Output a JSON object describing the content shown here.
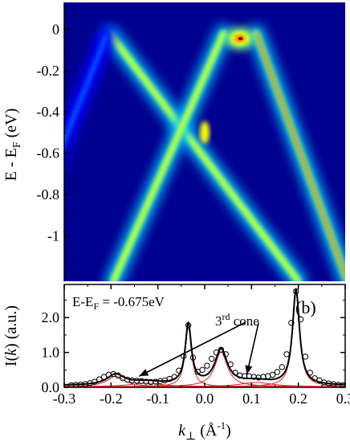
{
  "chart_data": [
    {
      "type": "heatmap",
      "panel_label": "",
      "ylabel": "E - E",
      "ylabel_sub": "F",
      "ylabel_unit": " (eV)",
      "ylim": [
        -1.22,
        0.13
      ],
      "xlim": [
        -0.3,
        0.3
      ],
      "yticks": [
        0,
        -0.2,
        -0.4,
        -0.6,
        -0.8,
        -1
      ],
      "ytick_labels": [
        "0",
        "-0.2",
        "-0.4",
        "-0.6",
        "-0.8",
        "-1"
      ],
      "colormap": [
        "#00008f",
        "#0000ff",
        "#00bfff",
        "#7fff7f",
        "#ffff00",
        "#ff4000",
        "#800000"
      ],
      "bands": [
        {
          "x": [
            -0.2,
            0.2
          ],
          "y": [
            -0.03,
            -1.22
          ],
          "intensity": 0.6
        },
        {
          "x": [
            0.04,
            -0.195
          ],
          "y": [
            -0.02,
            -1.22
          ],
          "intensity": 0.65
        },
        {
          "x": [
            0.11,
            0.305
          ],
          "y": [
            -0.02,
            -1.22
          ],
          "intensity": 0.75
        },
        {
          "x": [
            -0.21,
            -0.42
          ],
          "y": [
            -0.03,
            -1.22
          ],
          "intensity": 0.28
        }
      ],
      "hotspots": [
        {
          "x": 0.075,
          "y": -0.045,
          "intensity": 1.0
        },
        {
          "x": 0.0,
          "y": -0.5,
          "intensity": 0.6
        }
      ]
    },
    {
      "type": "line",
      "panel_label": "(b)",
      "annotation_energy": "E-E",
      "annotation_energy_sub": "F",
      "annotation_energy_value": " = -0.675eV",
      "annotation_cone_num": "3",
      "annotation_cone_sup": "rd",
      "annotation_cone_word": " cone",
      "ylabel_prefix": "I(",
      "ylabel_var": "k",
      "ylabel_suffix": ") (a.u.)",
      "xlabel_var": "k",
      "xlabel_sub": "⊥",
      "xlabel_unit_open": " (Å",
      "xlabel_unit_sup": "-1",
      "xlabel_unit_close": ")",
      "xlim": [
        -0.3,
        0.3
      ],
      "ylim": [
        0,
        2.95
      ],
      "xticks": [
        -0.3,
        -0.2,
        -0.1,
        0,
        0.1,
        0.2,
        0.3
      ],
      "xtick_labels": [
        "-0.3",
        "-0.2",
        "-0.1",
        "0.0",
        "0.1",
        "0.2",
        "0.3"
      ],
      "yticks": [
        0,
        1,
        2
      ],
      "ytick_labels": [
        "0.0",
        "1.0",
        "2.0"
      ],
      "background": 0.05,
      "series": [
        {
          "role": "fit",
          "color": "#000000",
          "peaks": [
            {
              "center": -0.19,
              "height": 0.3,
              "width": 0.022
            },
            {
              "center": -0.125,
              "height": 0.1,
              "width": 0.04
            },
            {
              "center": -0.035,
              "height": 1.72,
              "width": 0.008
            },
            {
              "center": 0.035,
              "height": 1.0,
              "width": 0.016
            },
            {
              "center": 0.11,
              "height": 0.12,
              "width": 0.04
            },
            {
              "center": 0.195,
              "height": 2.72,
              "width": 0.009
            }
          ]
        },
        {
          "role": "components",
          "color": "#e02020",
          "peaks": [
            {
              "center": -0.19,
              "height": 0.3,
              "width": 0.022
            },
            {
              "center": -0.125,
              "height": 0.1,
              "width": 0.04
            },
            {
              "center": -0.035,
              "height": 1.72,
              "width": 0.008
            },
            {
              "center": 0.035,
              "height": 1.0,
              "width": 0.016
            },
            {
              "center": 0.11,
              "height": 0.12,
              "width": 0.04
            },
            {
              "center": 0.195,
              "height": 2.72,
              "width": 0.009
            }
          ]
        },
        {
          "role": "data",
          "marker": "open-circle",
          "color": "#000000",
          "x": [
            -0.285,
            -0.275,
            -0.265,
            -0.255,
            -0.245,
            -0.235,
            -0.225,
            -0.215,
            -0.205,
            -0.195,
            -0.185,
            -0.175,
            -0.165,
            -0.155,
            -0.145,
            -0.135,
            -0.125,
            -0.115,
            -0.105,
            -0.095,
            -0.085,
            -0.075,
            -0.065,
            -0.055,
            -0.045,
            -0.035,
            -0.025,
            -0.015,
            -0.005,
            0.005,
            0.015,
            0.025,
            0.035,
            0.045,
            0.055,
            0.065,
            0.075,
            0.085,
            0.095,
            0.105,
            0.115,
            0.125,
            0.135,
            0.145,
            0.155,
            0.165,
            0.175,
            0.185,
            0.195,
            0.205,
            0.215,
            0.225,
            0.235,
            0.245,
            0.255,
            0.265,
            0.275,
            0.285,
            0.295
          ],
          "y": [
            0.06,
            0.07,
            0.08,
            0.09,
            0.12,
            0.16,
            0.23,
            0.3,
            0.36,
            0.38,
            0.34,
            0.26,
            0.22,
            0.2,
            0.19,
            0.18,
            0.16,
            0.15,
            0.16,
            0.18,
            0.2,
            0.24,
            0.3,
            0.48,
            0.9,
            1.78,
            0.85,
            0.45,
            0.5,
            0.62,
            0.82,
            1.0,
            1.08,
            0.95,
            0.66,
            0.42,
            0.34,
            0.32,
            0.32,
            0.3,
            0.28,
            0.3,
            0.32,
            0.36,
            0.44,
            0.58,
            0.95,
            1.85,
            2.75,
            1.95,
            0.88,
            0.42,
            0.26,
            0.2,
            0.14,
            0.11,
            0.09,
            0.07,
            0.06
          ]
        }
      ],
      "arrows": [
        {
          "from": [
            0.085,
            1.85
          ],
          "to": [
            -0.14,
            0.32
          ]
        },
        {
          "from": [
            0.115,
            1.85
          ],
          "to": [
            0.09,
            0.37
          ]
        }
      ]
    }
  ]
}
